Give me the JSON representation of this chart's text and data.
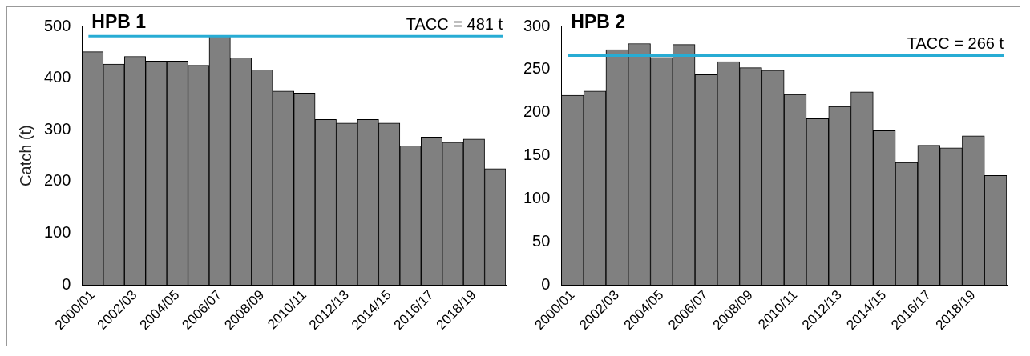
{
  "chart_data": [
    {
      "type": "bar",
      "title": "HPB 1",
      "ylabel": "Catch (t)",
      "categories": [
        "2000/01",
        null,
        "2002/03",
        null,
        "2004/05",
        null,
        "2006/07",
        null,
        "2008/09",
        null,
        "2010/11",
        null,
        "2012/13",
        null,
        "2014/15",
        null,
        "2016/17",
        null,
        "2018/19",
        null
      ],
      "values": [
        451,
        427,
        442,
        433,
        433,
        425,
        481,
        439,
        416,
        375,
        371,
        320,
        313,
        320,
        313,
        269,
        286,
        276,
        282,
        225
      ],
      "color": "#808080",
      "ylim": [
        0,
        500
      ],
      "yticks": [
        0,
        100,
        200,
        300,
        400,
        500
      ],
      "ref_lines": [
        {
          "axis": "y",
          "value": 481,
          "label": "TACC = 481 t",
          "color": "#28acd4"
        }
      ]
    },
    {
      "type": "bar",
      "title": "HPB 2",
      "categories": [
        "2000/01",
        null,
        "2002/03",
        null,
        "2004/05",
        null,
        "2006/07",
        null,
        "2008/09",
        null,
        "2010/11",
        null,
        "2012/13",
        null,
        "2014/15",
        null,
        "2016/17",
        null,
        "2018/19",
        null
      ],
      "values": [
        220,
        225,
        273,
        280,
        264,
        279,
        244,
        259,
        252,
        249,
        221,
        193,
        207,
        224,
        179,
        142,
        162,
        159,
        173,
        127
      ],
      "color": "#808080",
      "ylim": [
        0,
        300
      ],
      "yticks": [
        0,
        50,
        100,
        150,
        200,
        250,
        300
      ],
      "ref_lines": [
        {
          "axis": "y",
          "value": 266,
          "label": "TACC = 266 t",
          "color": "#28acd4"
        }
      ]
    }
  ]
}
